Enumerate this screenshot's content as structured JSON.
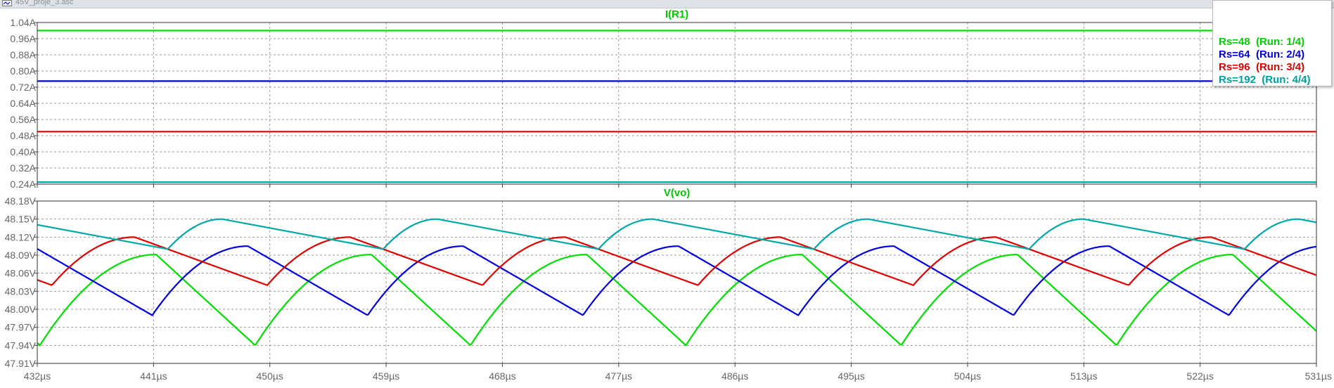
{
  "window": {
    "title": "45V_proje_3.asc",
    "icon": "ltspice-waveform-icon"
  },
  "chart_data": [
    {
      "type": "line",
      "title": "I(R1)",
      "title_color": "#00c800",
      "xlim": [
        432,
        531
      ],
      "ylim": [
        0.24,
        1.04
      ],
      "yticks": [
        "1.04A",
        "0.96A",
        "0.88A",
        "0.80A",
        "0.72A",
        "0.64A",
        "0.56A",
        "0.48A",
        "0.40A",
        "0.32A",
        "0.24A"
      ],
      "grid": true,
      "series": [
        {
          "name": "Rs=48",
          "color": "#00e000",
          "x": [
            432,
            531
          ],
          "y": [
            1.0,
            1.0
          ]
        },
        {
          "name": "Rs=64",
          "color": "#0000e0",
          "x": [
            432,
            531
          ],
          "y": [
            0.75,
            0.75
          ]
        },
        {
          "name": "Rs=96",
          "color": "#e00000",
          "x": [
            432,
            531
          ],
          "y": [
            0.5,
            0.5
          ]
        },
        {
          "name": "Rs=192",
          "color": "#00a8a8",
          "x": [
            432,
            531
          ],
          "y": [
            0.25,
            0.25
          ]
        }
      ]
    },
    {
      "type": "line",
      "title": "V(vo)",
      "title_color": "#00c800",
      "xlim": [
        432,
        531
      ],
      "ylim": [
        47.91,
        48.18
      ],
      "yticks": [
        "48.18V",
        "48.15V",
        "48.12V",
        "48.09V",
        "48.06V",
        "48.03V",
        "48.00V",
        "47.97V",
        "47.94V",
        "47.91V"
      ],
      "xticks": [
        "432µs",
        "441µs",
        "450µs",
        "459µs",
        "468µs",
        "477µs",
        "486µs",
        "495µs",
        "504µs",
        "513µs",
        "522µs",
        "531µs"
      ],
      "xtick_values": [
        432,
        441,
        450,
        459,
        468,
        477,
        486,
        495,
        504,
        513,
        522,
        531
      ],
      "grid": true,
      "period": 16.667,
      "series": [
        {
          "name": "Rs=48",
          "color": "#00e000",
          "ymin": 47.94,
          "ymax": 48.091,
          "t_min": 432.2,
          "t_max": 441.2
        },
        {
          "name": "Rs=64",
          "color": "#0000e0",
          "ymin": 47.99,
          "ymax": 48.105,
          "t_min": 440.9,
          "t_max": 448.3
        },
        {
          "name": "Rs=96",
          "color": "#e00000",
          "ymin": 48.04,
          "ymax": 48.12,
          "t_min": 449.8,
          "t_max": 456.2
        },
        {
          "name": "Rs=192",
          "color": "#00a8a8",
          "ymin": 48.1,
          "ymax": 48.15,
          "t_min": 442.1,
          "t_max": 446.3
        }
      ]
    }
  ],
  "legend": {
    "items": [
      {
        "text": "Rs=48  (Run: 1/4)",
        "color": "#00d000"
      },
      {
        "text": "Rs=64  (Run: 2/4)",
        "color": "#0000dd"
      },
      {
        "text": "Rs=96  (Run: 3/4)",
        "color": "#dd0000"
      },
      {
        "text": "Rs=192  (Run: 4/4)",
        "color": "#00a0a0"
      }
    ]
  }
}
